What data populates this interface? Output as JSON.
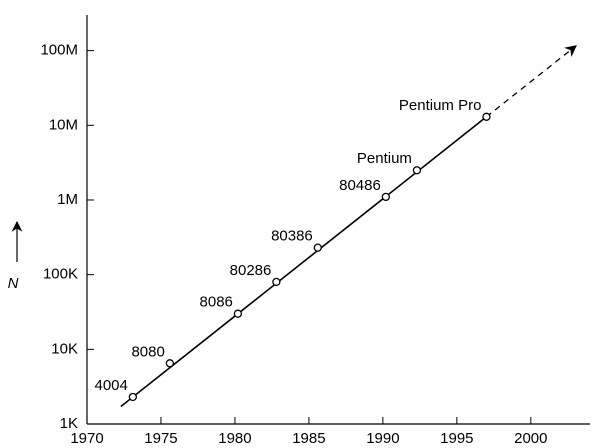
{
  "chart_data": {
    "type": "scatter",
    "y_label": "N",
    "labels": [
      "4004",
      "8080",
      "8086",
      "80286",
      "80386",
      "80486",
      "Pentium",
      "Pentium Pro"
    ],
    "x": [
      1973.1,
      1975.6,
      1980.2,
      1982.8,
      1985.6,
      1990.2,
      1992.3,
      1997.0
    ],
    "values": [
      2300,
      6500,
      30000,
      80000,
      230000,
      1100000,
      2500000,
      13000000
    ],
    "log_y": true,
    "xlim": [
      1970,
      2004
    ],
    "ylim": [
      1000,
      300000000
    ],
    "xticks": [
      1970,
      1975,
      1980,
      1985,
      1990,
      1995,
      2000
    ],
    "yticks": [
      {
        "value": 1000,
        "label": "1K"
      },
      {
        "value": 10000,
        "label": "10K"
      },
      {
        "value": 100000,
        "label": "100K"
      },
      {
        "value": 1000000,
        "label": "1M"
      },
      {
        "value": 10000000,
        "label": "10M"
      },
      {
        "value": 100000000,
        "label": "100M"
      }
    ],
    "color": "#000000"
  }
}
